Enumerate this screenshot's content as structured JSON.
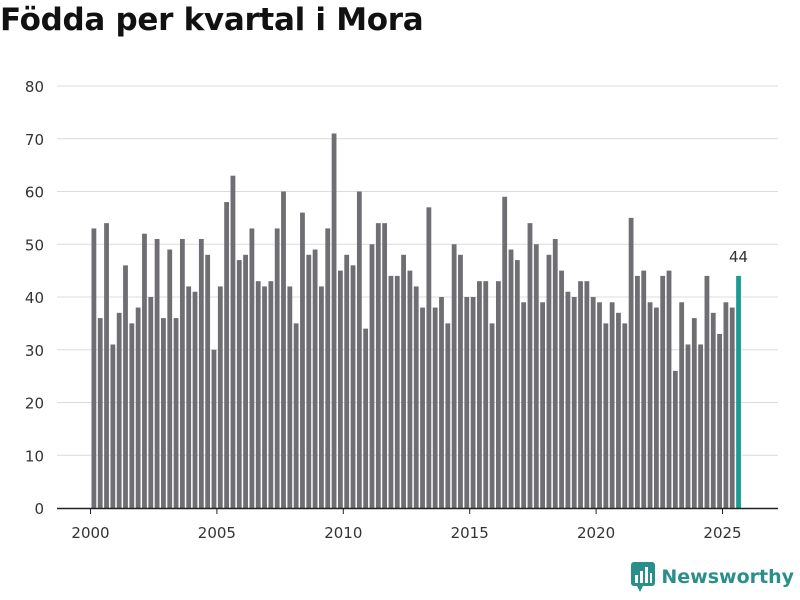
{
  "chart_data": {
    "type": "bar",
    "title": "Födda per kvartal i Mora",
    "xlabel": "",
    "ylabel": "",
    "ylim": [
      0,
      80
    ],
    "yticks": [
      0,
      10,
      20,
      30,
      40,
      50,
      60,
      70,
      80
    ],
    "xticks": [
      2000,
      2005,
      2010,
      2015,
      2020,
      2025
    ],
    "x_start": 2000,
    "periods_per_year": 4,
    "values": [
      53,
      36,
      54,
      31,
      37,
      46,
      35,
      38,
      52,
      40,
      51,
      36,
      49,
      36,
      51,
      42,
      41,
      51,
      48,
      30,
      42,
      58,
      63,
      47,
      48,
      53,
      43,
      42,
      43,
      53,
      60,
      42,
      35,
      56,
      48,
      49,
      42,
      53,
      71,
      45,
      48,
      46,
      60,
      34,
      50,
      54,
      54,
      44,
      44,
      48,
      45,
      42,
      38,
      57,
      38,
      40,
      35,
      50,
      48,
      40,
      40,
      43,
      43,
      35,
      43,
      59,
      49,
      47,
      39,
      54,
      50,
      39,
      48,
      51,
      45,
      41,
      40,
      43,
      43,
      40,
      39,
      35,
      39,
      37,
      35,
      55,
      44,
      45,
      39,
      38,
      44,
      45,
      26,
      39,
      31,
      36,
      31,
      44,
      37,
      33,
      39,
      38,
      44
    ],
    "highlight_label": "44",
    "bar_color": "#6e6e73",
    "highlight_color": "#1a9c93",
    "grid": true
  },
  "brand": {
    "name": "Newsworthy",
    "color": "#2a8f8a"
  }
}
